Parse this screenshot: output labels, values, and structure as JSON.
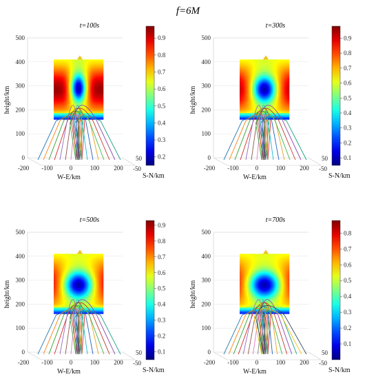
{
  "figure": {
    "title": "f=6M"
  },
  "chart_data": [
    {
      "type": "surface",
      "title": "t=100s",
      "xlabel": "W-E/km",
      "ylabel": "S-N/km",
      "zlabel": "height/km",
      "xlim": [
        -200,
        200
      ],
      "ylim": [
        -50,
        50
      ],
      "zlim": [
        0,
        500
      ],
      "x_ticks": [
        "-200",
        "-100",
        "0",
        "100",
        "200"
      ],
      "y_ticks": [
        "-50",
        "50"
      ],
      "z_ticks": [
        "0",
        "100",
        "200",
        "300",
        "400",
        "500"
      ],
      "colorbar": {
        "min": 0.15,
        "max": 0.97,
        "ticks": [
          "0.2",
          "0.3",
          "0.4",
          "0.5",
          "0.6",
          "0.7",
          "0.8",
          "0.9"
        ]
      },
      "plane_height_range_km": [
        160,
        410
      ],
      "depletion_peak_height_km": 290,
      "depletion_half_width_km": 28,
      "ray_count": 16
    },
    {
      "type": "surface",
      "title": "t=300s",
      "xlabel": "W-E/km",
      "ylabel": "S-N/km",
      "zlabel": "height/km",
      "xlim": [
        -200,
        200
      ],
      "ylim": [
        -50,
        50
      ],
      "zlim": [
        0,
        500
      ],
      "x_ticks": [
        "-200",
        "-100",
        "0",
        "100",
        "200"
      ],
      "y_ticks": [
        "-50",
        "50"
      ],
      "z_ticks": [
        "0",
        "100",
        "200",
        "300",
        "400",
        "500"
      ],
      "colorbar": {
        "min": 0.05,
        "max": 0.98,
        "ticks": [
          "0.1",
          "0.2",
          "0.3",
          "0.4",
          "0.5",
          "0.6",
          "0.7",
          "0.8",
          "0.9"
        ]
      },
      "plane_height_range_km": [
        160,
        410
      ],
      "depletion_peak_height_km": 285,
      "depletion_half_width_km": 45,
      "ray_count": 16
    },
    {
      "type": "surface",
      "title": "t=500s",
      "xlabel": "W-E/km",
      "ylabel": "S-N/km",
      "zlabel": "height/km",
      "xlim": [
        -200,
        200
      ],
      "ylim": [
        -50,
        50
      ],
      "zlim": [
        0,
        500
      ],
      "x_ticks": [
        "-200",
        "-100",
        "0",
        "100",
        "200"
      ],
      "y_ticks": [
        "-50",
        "50"
      ],
      "z_ticks": [
        "0",
        "100",
        "200",
        "300",
        "400",
        "500"
      ],
      "colorbar": {
        "min": 0.05,
        "max": 0.93,
        "ticks": [
          "0.1",
          "0.2",
          "0.3",
          "0.4",
          "0.5",
          "0.6",
          "0.7",
          "0.8",
          "0.9"
        ]
      },
      "plane_height_range_km": [
        160,
        410
      ],
      "depletion_peak_height_km": 280,
      "depletion_half_width_km": 55,
      "ray_count": 16
    },
    {
      "type": "surface",
      "title": "t=700s",
      "xlabel": "W-E/km",
      "ylabel": "S-N/km",
      "zlabel": "height/km",
      "xlim": [
        -200,
        200
      ],
      "ylim": [
        -50,
        50
      ],
      "zlim": [
        0,
        500
      ],
      "x_ticks": [
        "-200",
        "-100",
        "0",
        "100",
        "200"
      ],
      "y_ticks": [
        "-50",
        "50"
      ],
      "z_ticks": [
        "0",
        "100",
        "200",
        "300",
        "400",
        "500"
      ],
      "colorbar": {
        "min": 0.0,
        "max": 0.88,
        "ticks": [
          "0.1",
          "0.2",
          "0.3",
          "0.4",
          "0.5",
          "0.6",
          "0.7",
          "0.8"
        ]
      },
      "plane_height_range_km": [
        160,
        410
      ],
      "depletion_peak_height_km": 280,
      "depletion_half_width_km": 60,
      "ray_count": 18
    }
  ],
  "ray_colors": [
    "#1f77b4",
    "#ff7f0e",
    "#2ca02c",
    "#d62728",
    "#9467bd",
    "#8c564b",
    "#e377c2",
    "#7f7f7f",
    "#bcbd22",
    "#17becf",
    "#1f5fbf",
    "#e8a020",
    "#3cb44b",
    "#c0392b",
    "#8e44ad",
    "#16a085",
    "#f1c40f",
    "#34495e"
  ]
}
